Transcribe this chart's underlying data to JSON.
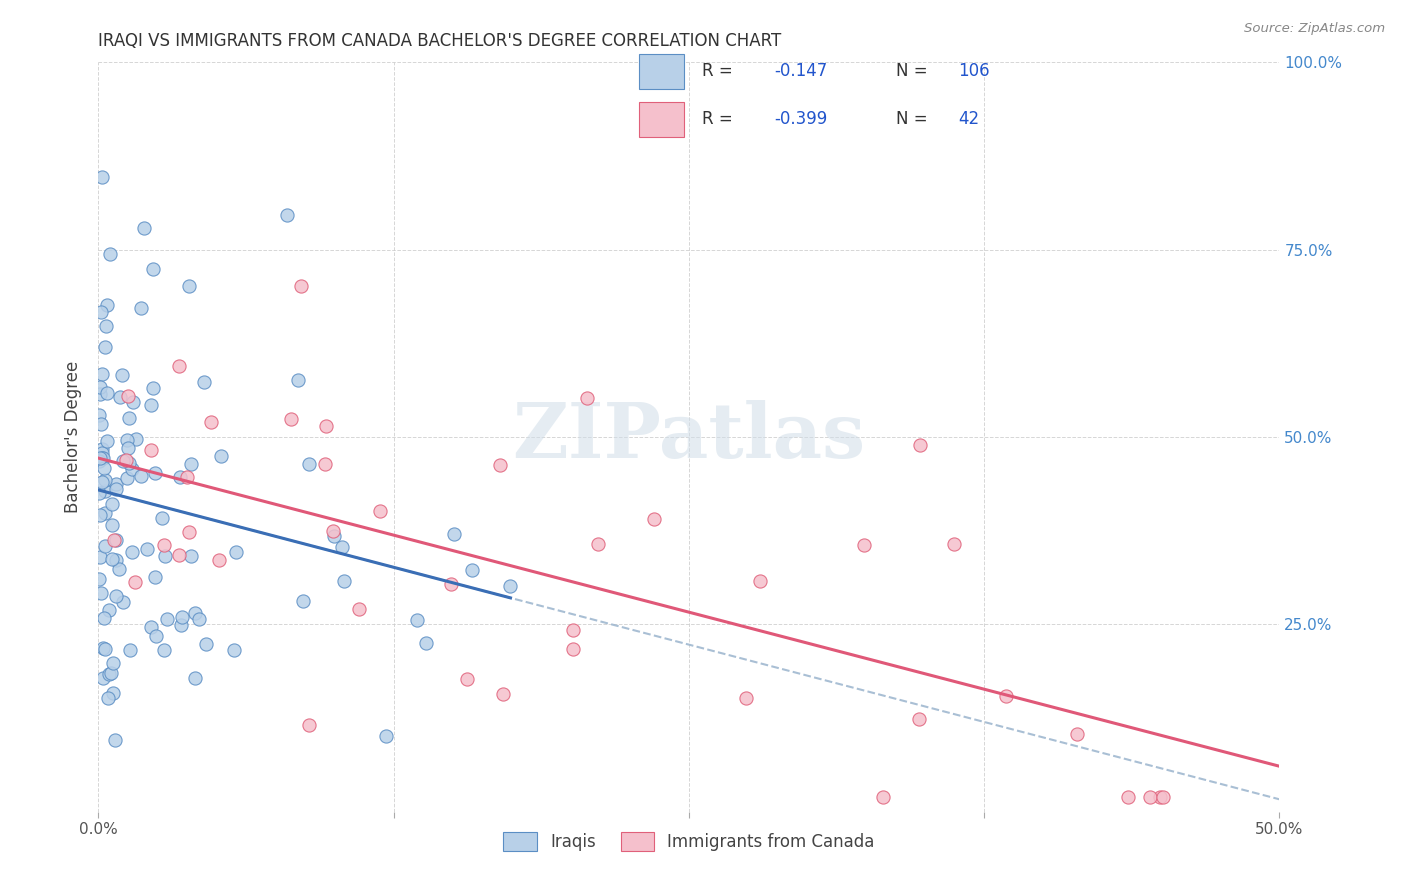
{
  "title": "IRAQI VS IMMIGRANTS FROM CANADA BACHELOR'S DEGREE CORRELATION CHART",
  "source": "Source: ZipAtlas.com",
  "ylabel": "Bachelor's Degree",
  "legend_label1": "Iraqis",
  "legend_label2": "Immigrants from Canada",
  "r1": -0.147,
  "n1": 106,
  "r2": -0.399,
  "n2": 42,
  "color_blue_fill": "#b8d0e8",
  "color_blue_edge": "#5b8ec4",
  "color_pink_fill": "#f5c0cc",
  "color_pink_edge": "#e0607a",
  "line_blue": "#3a6eb5",
  "line_pink": "#e05878",
  "line_dashed": "#a0b8d0",
  "watermark_color": "#d0dde8",
  "background": "#ffffff",
  "grid_color": "#cccccc",
  "title_color": "#333333",
  "source_color": "#888888",
  "right_tick_color": "#4488cc",
  "xlim": [
    0.0,
    0.5
  ],
  "ylim": [
    0.0,
    1.0
  ],
  "seed": 42
}
